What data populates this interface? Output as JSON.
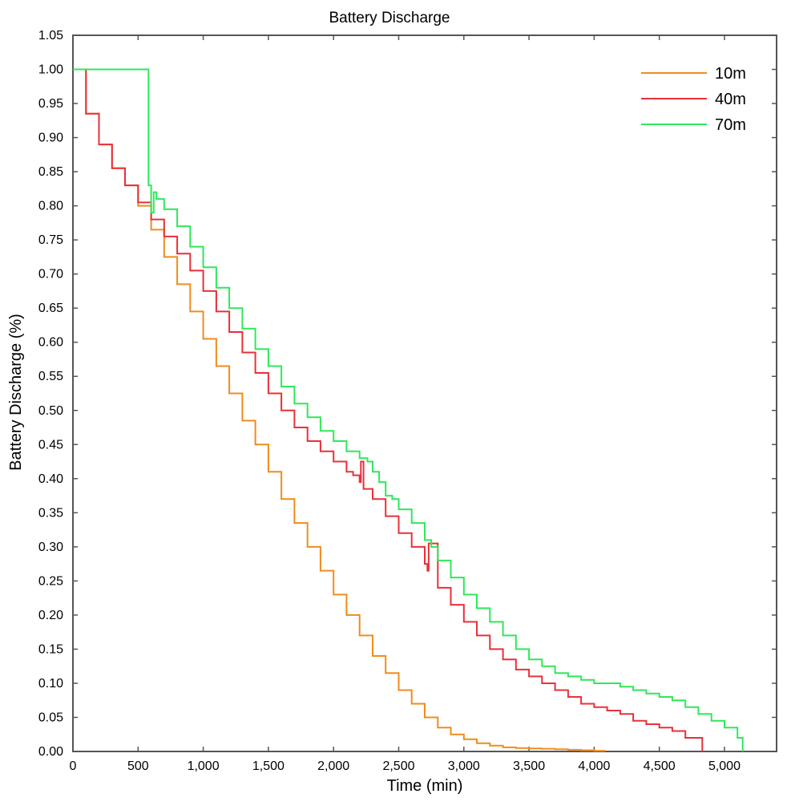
{
  "chart_data": {
    "type": "line",
    "title": "Battery Discharge",
    "xlabel": "Time (min)",
    "ylabel": "Battery Discharge (%)",
    "xlim": [
      0,
      5400
    ],
    "ylim": [
      0,
      1.05
    ],
    "x_ticks": [
      0,
      500,
      1000,
      1500,
      2000,
      2500,
      3000,
      3500,
      4000,
      4500,
      5000
    ],
    "x_tick_labels": [
      "0",
      "500",
      "1,000",
      "1,500",
      "2,000",
      "2,500",
      "3,000",
      "3,500",
      "4,000",
      "4,500",
      "5,000"
    ],
    "y_ticks": [
      0,
      0.05,
      0.1,
      0.15,
      0.2,
      0.25,
      0.3,
      0.35,
      0.4,
      0.45,
      0.5,
      0.55,
      0.6,
      0.65,
      0.7,
      0.75,
      0.8,
      0.85,
      0.9,
      0.95,
      1.0,
      1.05
    ],
    "y_tick_labels": [
      "0.00",
      "0.05",
      "0.10",
      "0.15",
      "0.20",
      "0.25",
      "0.30",
      "0.35",
      "0.40",
      "0.45",
      "0.50",
      "0.55",
      "0.60",
      "0.65",
      "0.70",
      "0.75",
      "0.80",
      "0.85",
      "0.90",
      "0.95",
      "1.00",
      "1.05"
    ],
    "grid": false,
    "legend_position": "top-right",
    "series": [
      {
        "name": "10m",
        "color": "#f08c1c",
        "x": [
          0,
          100,
          200,
          300,
          400,
          500,
          600,
          700,
          800,
          900,
          1000,
          1100,
          1200,
          1300,
          1400,
          1500,
          1600,
          1700,
          1800,
          1900,
          2000,
          2100,
          2200,
          2300,
          2400,
          2500,
          2600,
          2700,
          2800,
          2900,
          3000,
          3100,
          3200,
          3300,
          3400,
          3500,
          3600,
          3700,
          3800,
          3900,
          4000,
          4080
        ],
        "y": [
          1.0,
          0.935,
          0.89,
          0.855,
          0.83,
          0.8,
          0.765,
          0.725,
          0.685,
          0.645,
          0.605,
          0.565,
          0.525,
          0.485,
          0.45,
          0.41,
          0.37,
          0.335,
          0.3,
          0.265,
          0.23,
          0.2,
          0.17,
          0.14,
          0.115,
          0.09,
          0.07,
          0.05,
          0.035,
          0.025,
          0.018,
          0.012,
          0.0085,
          0.006,
          0.005,
          0.0045,
          0.004,
          0.0032,
          0.0025,
          0.0018,
          0.001,
          0
        ]
      },
      {
        "name": "40m",
        "color": "#e8303a",
        "x": [
          0,
          100,
          200,
          300,
          400,
          500,
          600,
          700,
          800,
          900,
          1000,
          1100,
          1200,
          1300,
          1400,
          1500,
          1600,
          1700,
          1800,
          1900,
          2000,
          2100,
          2150,
          2200,
          2210,
          2230,
          2300,
          2400,
          2500,
          2600,
          2700,
          2720,
          2730,
          2800,
          2900,
          3000,
          3100,
          3200,
          3300,
          3400,
          3500,
          3600,
          3700,
          3800,
          3900,
          4000,
          4100,
          4200,
          4300,
          4400,
          4500,
          4600,
          4700,
          4830
        ],
        "y": [
          1.0,
          0.935,
          0.89,
          0.855,
          0.83,
          0.805,
          0.78,
          0.755,
          0.73,
          0.705,
          0.675,
          0.645,
          0.615,
          0.585,
          0.555,
          0.525,
          0.5,
          0.475,
          0.455,
          0.44,
          0.425,
          0.41,
          0.405,
          0.395,
          0.425,
          0.385,
          0.37,
          0.345,
          0.32,
          0.3,
          0.275,
          0.265,
          0.305,
          0.24,
          0.215,
          0.19,
          0.17,
          0.15,
          0.135,
          0.12,
          0.11,
          0.1,
          0.09,
          0.08,
          0.07,
          0.065,
          0.06,
          0.055,
          0.045,
          0.04,
          0.035,
          0.03,
          0.02,
          0
        ]
      },
      {
        "name": "70m",
        "color": "#2ee85a",
        "x": [
          0,
          580,
          600,
          620,
          640,
          700,
          800,
          900,
          1000,
          1100,
          1200,
          1300,
          1400,
          1500,
          1600,
          1700,
          1800,
          1900,
          2000,
          2100,
          2200,
          2260,
          2300,
          2350,
          2400,
          2450,
          2500,
          2600,
          2700,
          2750,
          2800,
          2900,
          3000,
          3100,
          3200,
          3300,
          3400,
          3500,
          3600,
          3700,
          3800,
          3900,
          4000,
          4100,
          4200,
          4300,
          4400,
          4500,
          4600,
          4700,
          4800,
          4900,
          5000,
          5100,
          5140
        ],
        "y": [
          1.0,
          0.83,
          0.79,
          0.82,
          0.81,
          0.795,
          0.77,
          0.74,
          0.71,
          0.68,
          0.65,
          0.62,
          0.59,
          0.565,
          0.535,
          0.51,
          0.49,
          0.47,
          0.455,
          0.44,
          0.43,
          0.425,
          0.41,
          0.395,
          0.375,
          0.37,
          0.355,
          0.335,
          0.31,
          0.3,
          0.28,
          0.255,
          0.23,
          0.21,
          0.19,
          0.17,
          0.15,
          0.135,
          0.125,
          0.115,
          0.11,
          0.105,
          0.1,
          0.1,
          0.095,
          0.09,
          0.085,
          0.08,
          0.075,
          0.065,
          0.055,
          0.045,
          0.035,
          0.02,
          0
        ]
      }
    ]
  }
}
